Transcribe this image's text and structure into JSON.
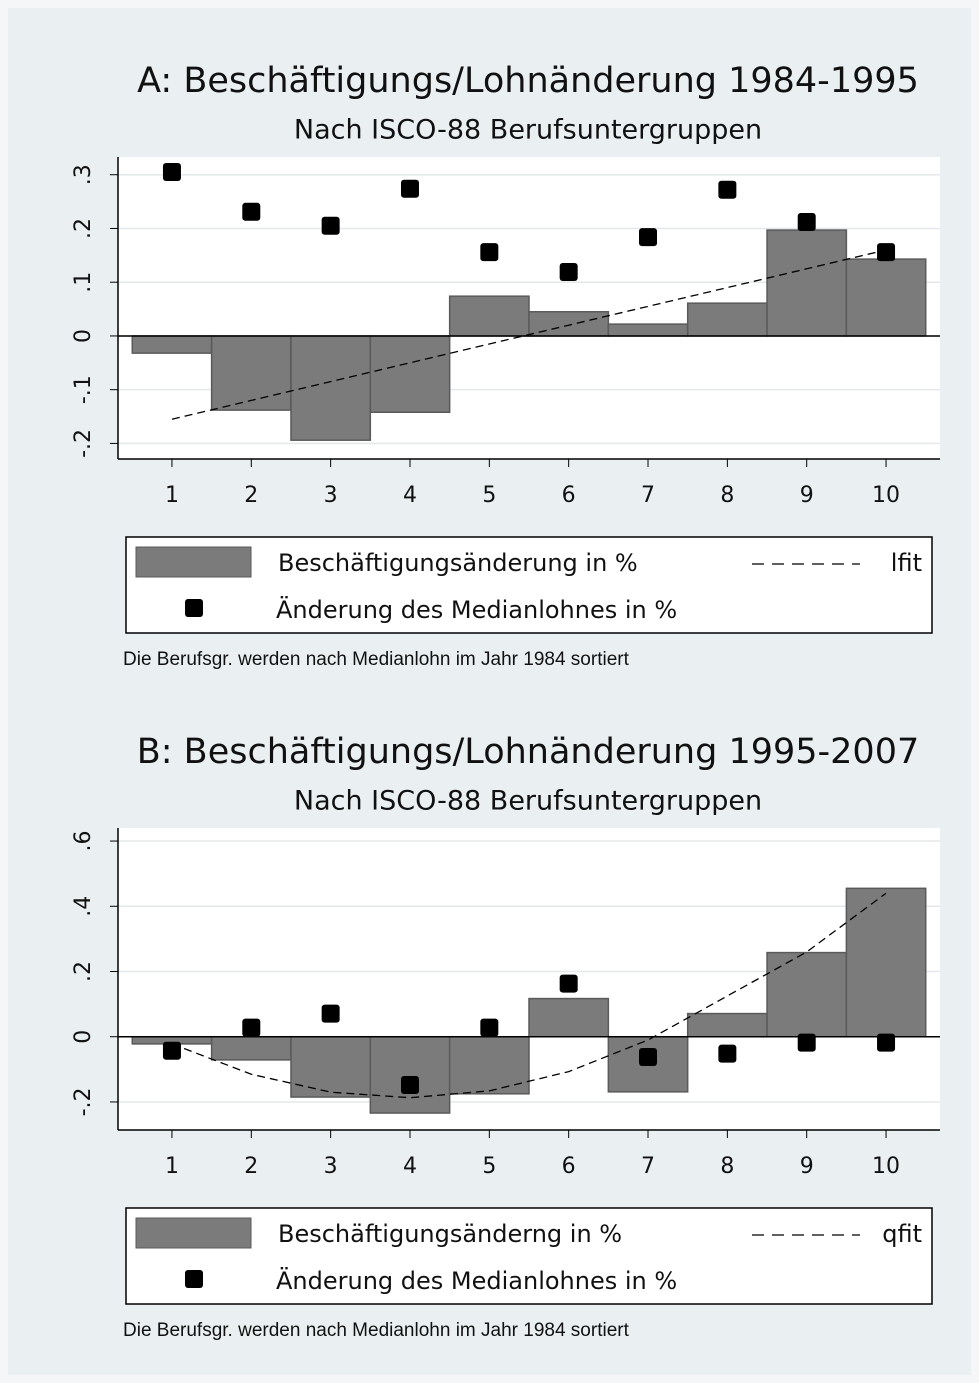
{
  "chart_data": [
    {
      "type": "combo",
      "title": "A: Beschäftigungs/Lohnänderung 1984-1995",
      "subtitle": "Nach ISCO-88 Berufsuntergruppen",
      "note": "Die Berufsgr. werden nach Medianlohn im Jahr 1984 sortiert",
      "x": [
        1,
        2,
        3,
        4,
        5,
        6,
        7,
        8,
        9,
        10
      ],
      "xlim": [
        0.32,
        10.68
      ],
      "xticks": [
        1,
        2,
        3,
        4,
        5,
        6,
        7,
        8,
        9,
        10
      ],
      "ylim": [
        -0.229,
        0.333
      ],
      "yticks": [
        {
          "value": -0.2,
          "label": "-.2"
        },
        {
          "value": -0.1,
          "label": "-.1"
        },
        0,
        {
          "value": 0.1,
          "label": ".1"
        },
        {
          "value": 0.2,
          "label": ".2"
        },
        {
          "value": 0.3,
          "label": ".3"
        }
      ],
      "grid": true,
      "series": [
        {
          "name": "Beschäftigungsänderung in %",
          "type": "bar",
          "color": "#7b7b7b",
          "values": [
            -0.032,
            -0.138,
            -0.194,
            -0.142,
            0.074,
            0.045,
            0.022,
            0.061,
            0.197,
            0.143
          ]
        },
        {
          "name": "Änderung des Medianlohnes in %",
          "type": "scatter",
          "color": "#000000",
          "values": [
            0.305,
            0.231,
            0.205,
            0.274,
            0.156,
            0.119,
            0.184,
            0.272,
            0.212,
            0.156
          ]
        },
        {
          "name": "lfit",
          "type": "line",
          "color": "#000000",
          "values": [
            -0.155,
            -0.12,
            -0.085,
            -0.05,
            -0.015,
            0.02,
            0.055,
            0.09,
            0.125,
            0.16
          ]
        }
      ]
    },
    {
      "type": "combo",
      "title": "B: Beschäftigungs/Lohnänderung 1995-2007",
      "subtitle": "Nach ISCO-88 Berufsuntergruppen",
      "note": "Die Berufsgr. werden nach Medianlohn im Jahr 1984 sortiert",
      "x": [
        1,
        2,
        3,
        4,
        5,
        6,
        7,
        8,
        9,
        10
      ],
      "xlim": [
        0.32,
        10.68
      ],
      "xticks": [
        1,
        2,
        3,
        4,
        5,
        6,
        7,
        8,
        9,
        10
      ],
      "ylim": [
        -0.286,
        0.64
      ],
      "yticks": [
        {
          "value": -0.2,
          "label": "-.2"
        },
        0,
        {
          "value": 0.2,
          "label": ".2"
        },
        {
          "value": 0.4,
          "label": ".4"
        },
        {
          "value": 0.6,
          "label": ".6"
        }
      ],
      "grid": true,
      "series": [
        {
          "name": "Beschäftigungsänderng in %",
          "type": "bar",
          "color": "#7b7b7b",
          "values": [
            -0.022,
            -0.071,
            -0.185,
            -0.234,
            -0.175,
            0.117,
            -0.169,
            0.071,
            0.258,
            0.455
          ]
        },
        {
          "name": "Änderung des Medianlohnes in %",
          "type": "scatter",
          "color": "#000000",
          "values": [
            -0.043,
            0.028,
            0.071,
            -0.148,
            0.028,
            0.163,
            -0.062,
            -0.052,
            -0.018,
            -0.018
          ]
        },
        {
          "name": "qfit",
          "type": "line",
          "color": "#000000",
          "values": [
            -0.022,
            -0.115,
            -0.17,
            -0.187,
            -0.166,
            -0.107,
            -0.01,
            0.125,
            0.26,
            0.44
          ]
        }
      ]
    }
  ]
}
